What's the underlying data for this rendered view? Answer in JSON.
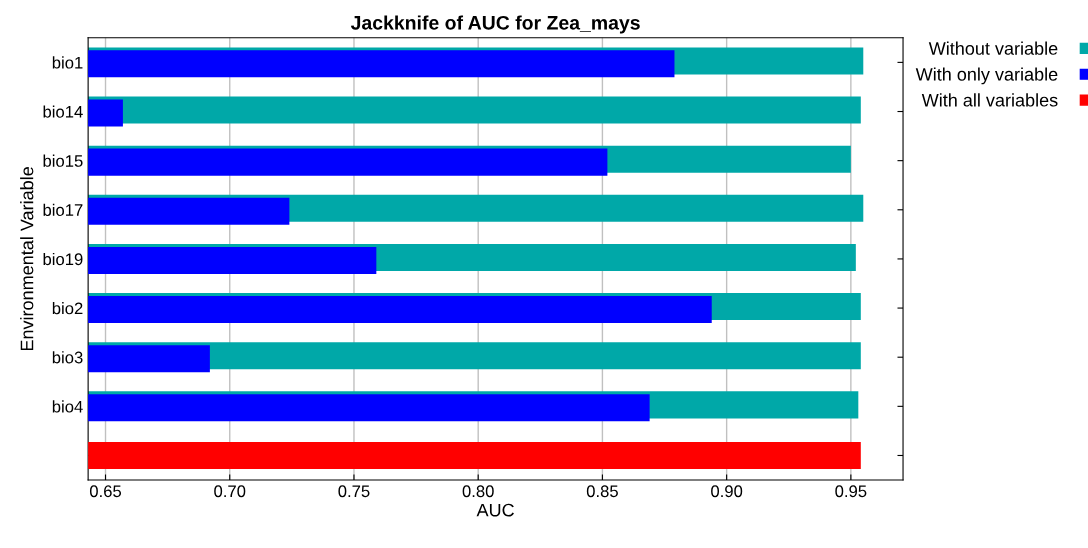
{
  "chart_data": {
    "type": "bar",
    "orientation": "horizontal",
    "title": "Jackknife of AUC for Zea_mays",
    "xlabel": "AUC",
    "ylabel": "Environmental Variable",
    "categories": [
      "bio1",
      "bio14",
      "bio15",
      "bio17",
      "bio19",
      "bio2",
      "bio3",
      "bio4",
      null
    ],
    "series": [
      {
        "name": "Without variable",
        "color": "#00a8a8",
        "values": [
          0.955,
          0.954,
          0.95,
          0.955,
          0.952,
          0.954,
          0.954,
          0.953,
          null
        ]
      },
      {
        "name": "With only variable",
        "color": "#0000ff",
        "values": [
          0.879,
          0.657,
          0.852,
          0.724,
          0.759,
          0.894,
          0.692,
          0.869,
          null
        ]
      },
      {
        "name": "With all variables",
        "color": "#ff0000",
        "values": [
          null,
          null,
          null,
          null,
          null,
          null,
          null,
          null,
          0.954
        ]
      }
    ],
    "xlim": [
      0.643,
      0.971
    ],
    "xticks": [
      {
        "value": 0.65,
        "label": "0.65"
      },
      {
        "value": 0.7,
        "label": "0.70"
      },
      {
        "value": 0.75,
        "label": "0.75"
      },
      {
        "value": 0.8,
        "label": "0.80"
      },
      {
        "value": 0.85,
        "label": "0.85"
      },
      {
        "value": 0.9,
        "label": "0.90"
      },
      {
        "value": 0.95,
        "label": "0.95"
      }
    ],
    "grid": "x",
    "legend": "top right"
  }
}
